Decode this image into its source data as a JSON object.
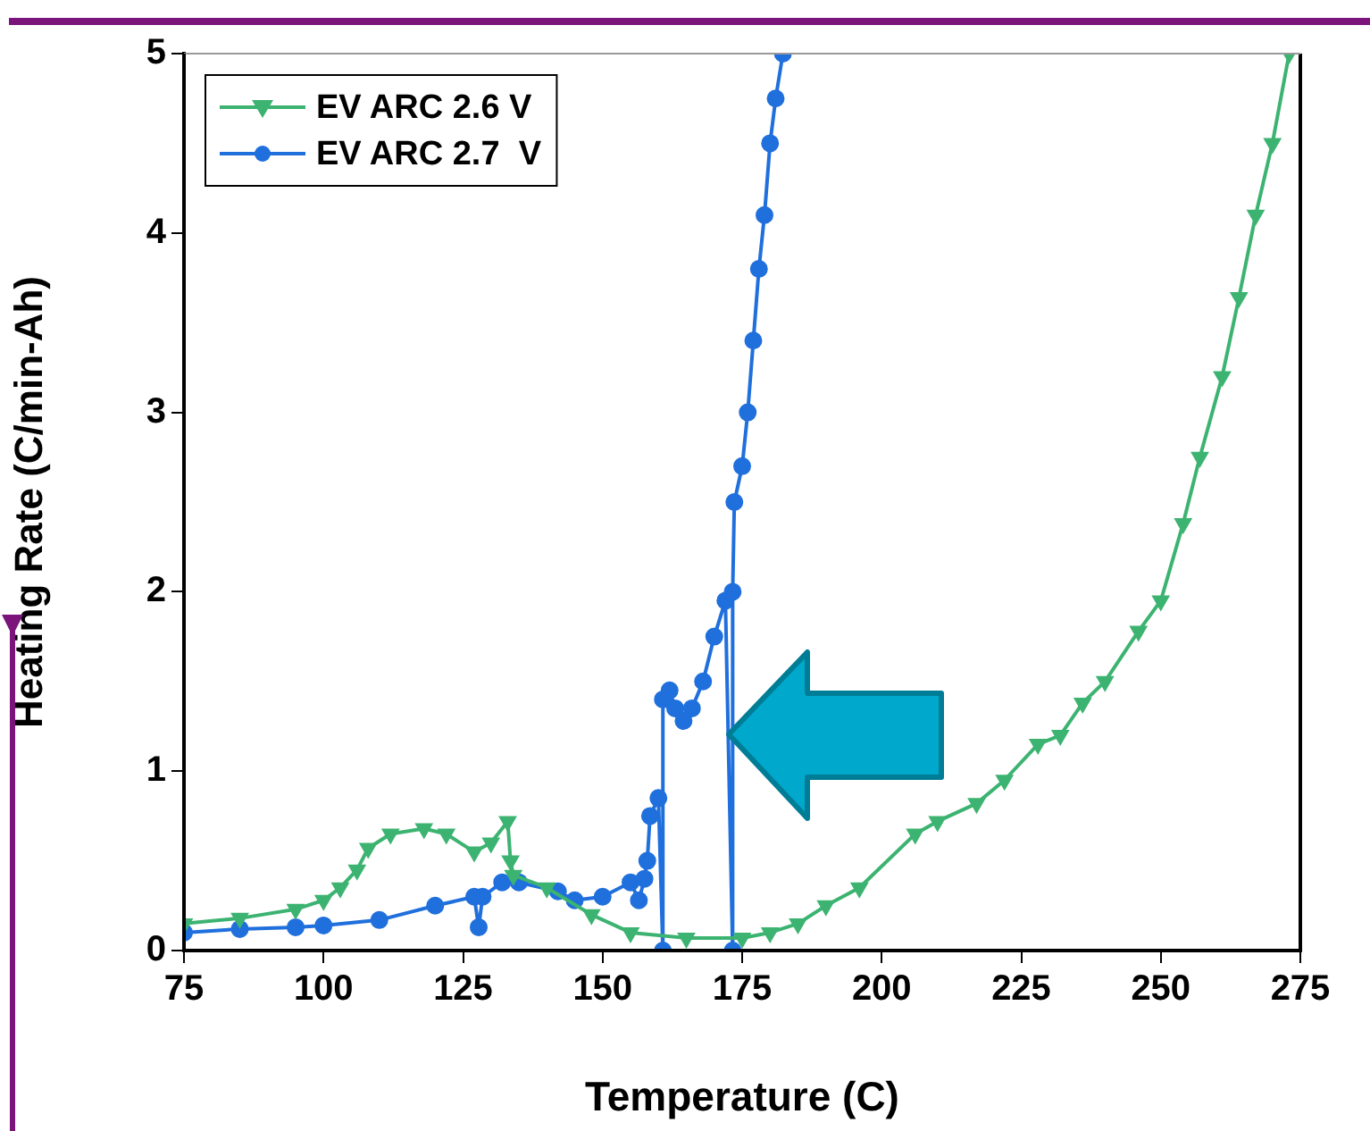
{
  "chart_data": {
    "type": "line",
    "xlabel": "Temperature (C)",
    "ylabel": "Heating Rate (C/min-Ah)",
    "xlim": [
      75,
      275
    ],
    "xticks": [
      75,
      100,
      125,
      150,
      175,
      200,
      225,
      250,
      275
    ],
    "ylim": [
      0,
      5
    ],
    "yticks": [
      0,
      1,
      2,
      3,
      4,
      5
    ],
    "grid": false,
    "legend": "top left",
    "series": [
      {
        "name": "EV ARC 2.6 V",
        "color": "#3cb371",
        "marker": "triangle",
        "x": [
          75,
          85,
          95,
          100,
          103,
          106,
          108,
          112,
          118,
          122,
          127,
          130,
          133,
          133.5,
          134,
          140,
          148,
          155,
          165,
          175,
          180,
          185,
          190,
          196,
          206,
          210,
          217,
          222,
          228,
          232,
          236,
          240,
          246,
          250,
          254,
          257,
          261,
          264,
          267,
          270,
          273
        ],
        "values": [
          0.15,
          0.18,
          0.23,
          0.28,
          0.35,
          0.45,
          0.57,
          0.65,
          0.68,
          0.65,
          0.55,
          0.6,
          0.72,
          0.5,
          0.42,
          0.35,
          0.2,
          0.1,
          0.07,
          0.07,
          0.1,
          0.15,
          0.25,
          0.35,
          0.65,
          0.72,
          0.82,
          0.95,
          1.15,
          1.2,
          1.38,
          1.5,
          1.78,
          1.95,
          2.38,
          2.75,
          3.2,
          3.64,
          4.1,
          4.5,
          5.0
        ]
      },
      {
        "name": "EV ARC 2.7  V",
        "color": "#1f6fdc",
        "marker": "circle",
        "x": [
          75,
          85,
          95,
          100,
          110,
          120,
          127,
          127.8,
          128.5,
          132,
          135,
          142,
          145,
          150,
          155,
          156.5,
          157.5,
          158,
          158.5,
          160,
          160.8,
          160.8,
          162,
          163,
          164.5,
          166,
          168,
          170,
          172,
          173.3,
          173.3,
          173.6,
          175,
          176,
          177,
          178,
          179,
          180,
          181,
          182.3
        ],
        "values": [
          0.1,
          0.12,
          0.13,
          0.14,
          0.17,
          0.25,
          0.3,
          0.13,
          0.3,
          0.38,
          0.38,
          0.33,
          0.28,
          0.3,
          0.38,
          0.28,
          0.4,
          0.5,
          0.75,
          0.85,
          0.0,
          1.4,
          1.45,
          1.35,
          1.28,
          1.35,
          1.5,
          1.75,
          1.95,
          0.0,
          2.0,
          2.5,
          2.7,
          3.0,
          3.4,
          3.8,
          4.1,
          4.5,
          4.75,
          5.0
        ]
      }
    ]
  }
}
